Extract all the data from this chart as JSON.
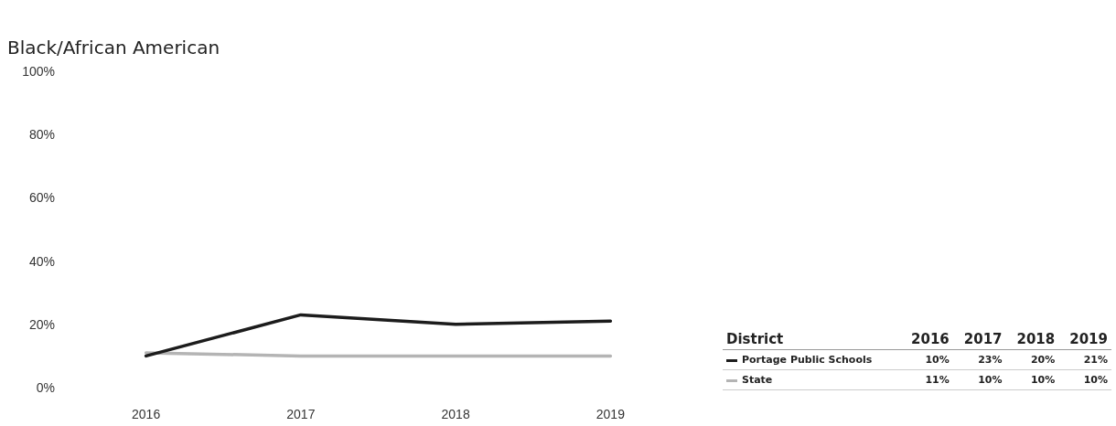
{
  "chart_data": {
    "type": "line",
    "title": "Black/African American",
    "legend_title": "District",
    "categories": [
      "2016",
      "2017",
      "2018",
      "2019"
    ],
    "series": [
      {
        "name": "Portage Public Schools",
        "color": "#1c1c1c",
        "values": [
          10,
          23,
          20,
          21
        ]
      },
      {
        "name": "State",
        "color": "#b4b4b4",
        "values": [
          11,
          10,
          10,
          10
        ]
      }
    ],
    "ylim": [
      0,
      100
    ],
    "yticks": [
      {
        "value": 0,
        "label": "0%"
      },
      {
        "value": 20,
        "label": "20%"
      },
      {
        "value": 40,
        "label": "40%"
      },
      {
        "value": 60,
        "label": "60%"
      },
      {
        "value": 80,
        "label": "80%"
      },
      {
        "value": 100,
        "label": "100%"
      }
    ],
    "annotations": [
      "10%",
      "23%",
      "20%",
      "21%",
      "11%",
      "10%",
      "10%",
      "10%"
    ],
    "grid": false,
    "legend": "right",
    "marker": "none",
    "line_style": "solid"
  }
}
